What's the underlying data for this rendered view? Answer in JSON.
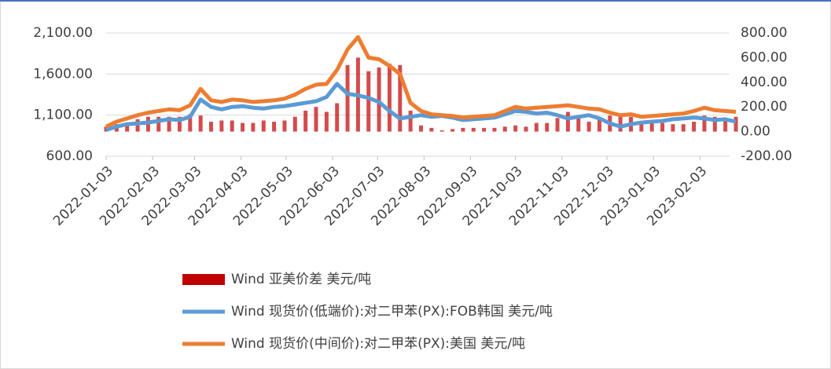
{
  "chart_data": {
    "type": "combo",
    "x": [
      "2022-01-03",
      "2022-01-10",
      "2022-01-17",
      "2022-01-24",
      "2022-01-31",
      "2022-02-07",
      "2022-02-14",
      "2022-02-21",
      "2022-02-28",
      "2022-03-07",
      "2022-03-14",
      "2022-03-21",
      "2022-03-28",
      "2022-04-04",
      "2022-04-11",
      "2022-04-18",
      "2022-04-25",
      "2022-05-02",
      "2022-05-09",
      "2022-05-16",
      "2022-05-23",
      "2022-05-30",
      "2022-06-06",
      "2022-06-13",
      "2022-06-20",
      "2022-06-27",
      "2022-07-04",
      "2022-07-11",
      "2022-07-18",
      "2022-07-25",
      "2022-08-01",
      "2022-08-08",
      "2022-08-15",
      "2022-08-22",
      "2022-08-29",
      "2022-09-05",
      "2022-09-12",
      "2022-09-19",
      "2022-09-26",
      "2022-10-03",
      "2022-10-10",
      "2022-10-17",
      "2022-10-24",
      "2022-10-31",
      "2022-11-07",
      "2022-11-14",
      "2022-11-21",
      "2022-11-28",
      "2022-12-05",
      "2022-12-12",
      "2022-12-19",
      "2022-12-26",
      "2023-01-02",
      "2023-01-09",
      "2023-01-16",
      "2023-01-23",
      "2023-01-30",
      "2023-02-06",
      "2023-02-13",
      "2023-02-20",
      "2023-02-27"
    ],
    "xlim": [
      "2022-01-03",
      "2023-02-27"
    ],
    "xticks": [
      "2022-01-03",
      "2022-02-03",
      "2022-03-03",
      "2022-04-03",
      "2022-05-03",
      "2022-06-03",
      "2022-07-03",
      "2022-08-03",
      "2022-09-03",
      "2022-10-03",
      "2022-11-03",
      "2022-12-03",
      "2023-01-03",
      "2023-02-03"
    ],
    "ylim": [
      600,
      2100
    ],
    "yticks": [
      {
        "value": 600,
        "label": "600.00"
      },
      {
        "value": 1100,
        "label": "1,100.00"
      },
      {
        "value": 1600,
        "label": "1,600.00"
      },
      {
        "value": 2100,
        "label": "2,100.00"
      }
    ],
    "y2lim": [
      -200,
      800
    ],
    "y2ticks": [
      {
        "value": -200,
        "label": "-200.00"
      },
      {
        "value": 0,
        "label": "0.00"
      },
      {
        "value": 200,
        "label": "200.00"
      },
      {
        "value": 400,
        "label": "400.00"
      },
      {
        "value": 600,
        "label": "600.00"
      },
      {
        "value": 800,
        "label": "800.00"
      }
    ],
    "grid": true,
    "series": [
      {
        "name": "Wind 亚美价差 美元/吨",
        "type": "bar",
        "axis": "y2",
        "color": "#c00000",
        "values": [
          40,
          60,
          70,
          100,
          120,
          120,
          120,
          120,
          140,
          130,
          80,
          90,
          90,
          70,
          70,
          90,
          80,
          90,
          120,
          170,
          200,
          160,
          230,
          540,
          600,
          490,
          520,
          550,
          540,
          170,
          50,
          30,
          10,
          20,
          30,
          30,
          30,
          30,
          40,
          50,
          40,
          70,
          70,
          110,
          160,
          120,
          80,
          110,
          130,
          140,
          120,
          70,
          70,
          70,
          60,
          60,
          80,
          130,
          120,
          100,
          120
        ]
      },
      {
        "name": "Wind 现货价(低端价):对二甲苯(PX):FOB韩国 美元/吨",
        "type": "line",
        "color": "#5b9bd5",
        "values": [
          920,
          960,
          990,
          1000,
          1010,
          1030,
          1050,
          1040,
          1080,
          1290,
          1200,
          1170,
          1200,
          1210,
          1190,
          1180,
          1200,
          1210,
          1230,
          1250,
          1270,
          1320,
          1480,
          1360,
          1340,
          1310,
          1260,
          1150,
          1060,
          1080,
          1100,
          1080,
          1090,
          1070,
          1040,
          1050,
          1060,
          1070,
          1110,
          1150,
          1140,
          1120,
          1130,
          1100,
          1060,
          1080,
          1100,
          1060,
          1000,
          960,
          990,
          1010,
          1020,
          1030,
          1050,
          1060,
          1070,
          1060,
          1040,
          1050,
          1020
        ]
      },
      {
        "name": "Wind 现货价(中间价):对二甲苯(PX):美国 美元/吨",
        "type": "line",
        "color": "#ed7d31",
        "values": [
          960,
          1020,
          1060,
          1100,
          1130,
          1150,
          1170,
          1160,
          1220,
          1420,
          1280,
          1260,
          1290,
          1280,
          1260,
          1270,
          1280,
          1300,
          1350,
          1420,
          1470,
          1480,
          1650,
          1900,
          2050,
          1800,
          1780,
          1700,
          1600,
          1250,
          1150,
          1110,
          1100,
          1090,
          1070,
          1080,
          1090,
          1100,
          1150,
          1200,
          1180,
          1190,
          1200,
          1210,
          1220,
          1200,
          1180,
          1170,
          1130,
          1100,
          1110,
          1080,
          1090,
          1100,
          1110,
          1120,
          1150,
          1190,
          1160,
          1150,
          1140
        ]
      }
    ]
  }
}
